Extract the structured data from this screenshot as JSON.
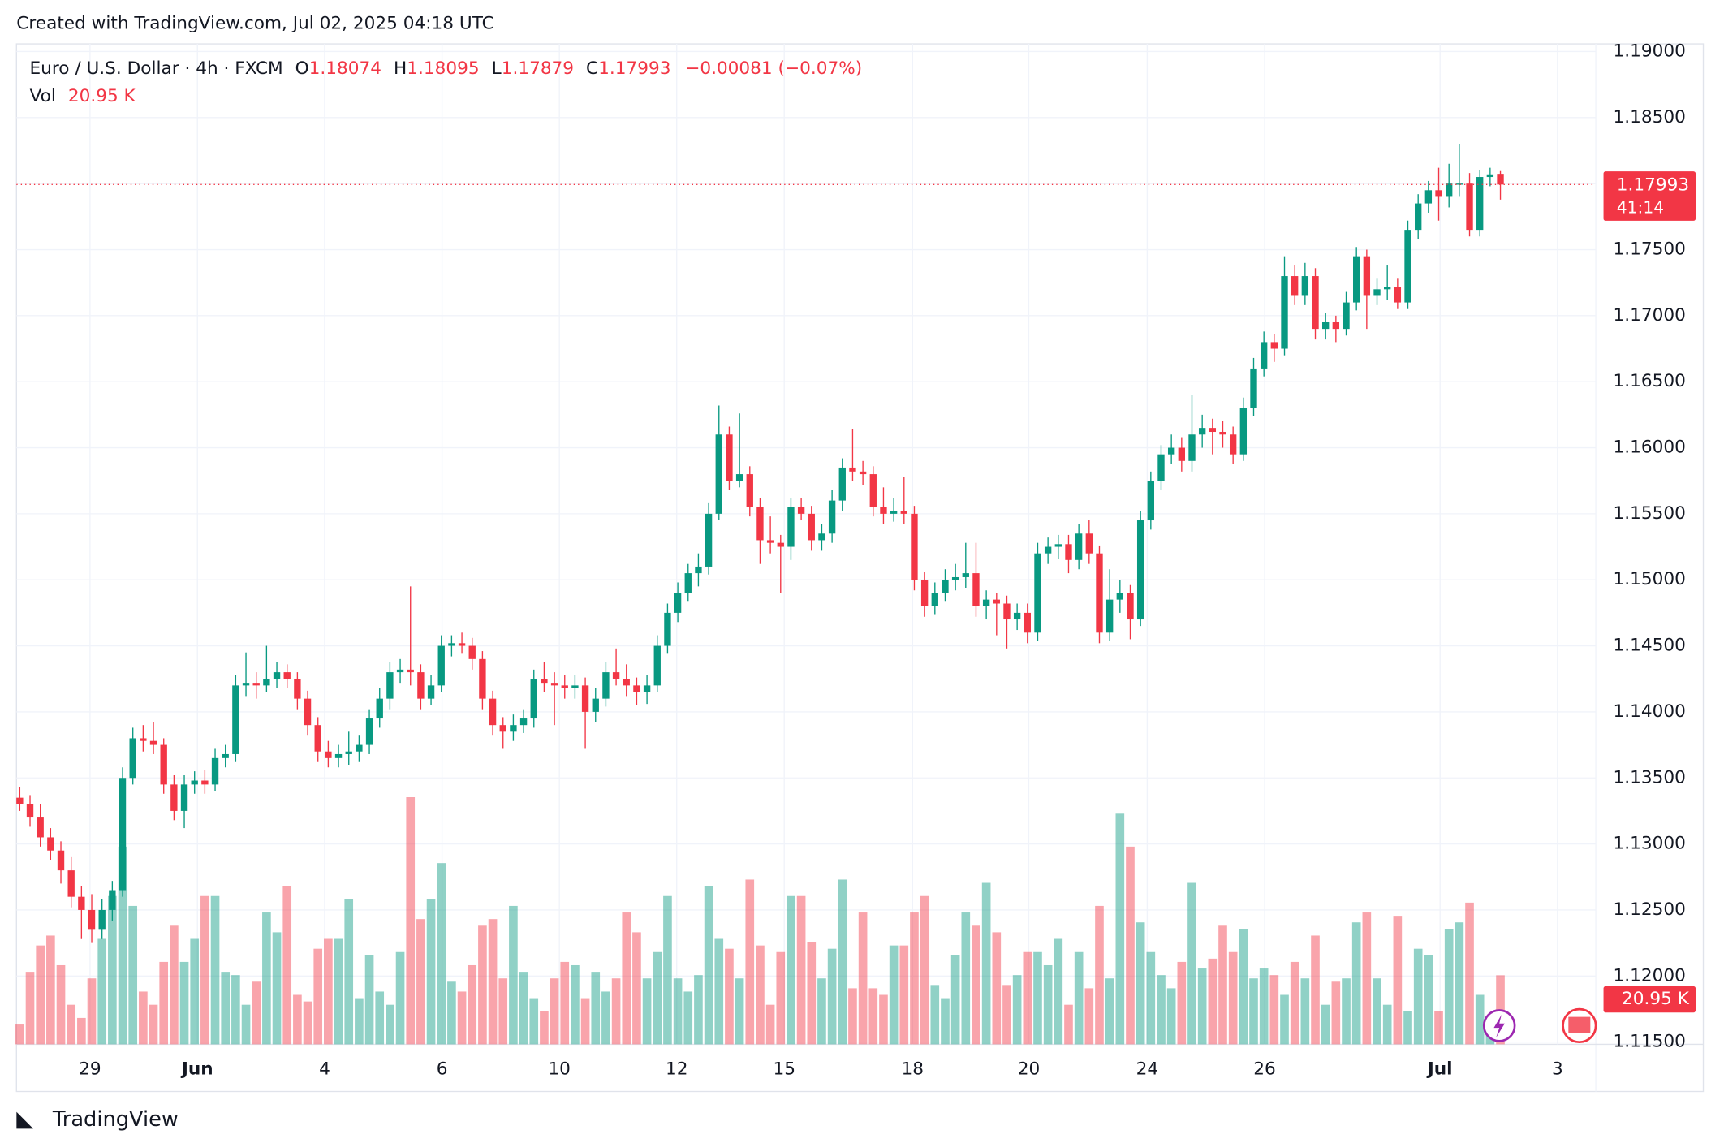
{
  "caption": "Created with TradingView.com, Jul 02, 2025 04:18 UTC",
  "footer": "TradingView",
  "chart_data": {
    "type": "candlestick",
    "header": {
      "symbol": "Euro / U.S. Dollar · 4h · FXCM",
      "o": "O",
      "h": "H",
      "l": "L",
      "c": "C",
      "change": "−0.00081 (−0.07%)",
      "vol": "Vol"
    },
    "countdown": "41:14",
    "last_volume_label": "20.95 K",
    "up_color": "#089981",
    "down_color": "#f23645",
    "up_volume_color": "rgba(8,153,129,0.45)",
    "down_volume_color": "rgba(242,54,69,0.45)",
    "grid": true,
    "xlim": [
      -0.32,
      153.28
    ],
    "xticks": [
      {
        "value": 6.83,
        "label": "29"
      },
      {
        "value": 17.28,
        "label": "Jun"
      },
      {
        "value": 29.65,
        "label": "4"
      },
      {
        "value": 41.07,
        "label": "6"
      },
      {
        "value": 52.48,
        "label": "10"
      },
      {
        "value": 63.89,
        "label": "12"
      },
      {
        "value": 74.35,
        "label": "15"
      },
      {
        "value": 86.83,
        "label": "18"
      },
      {
        "value": 98.13,
        "label": "20"
      },
      {
        "value": 109.65,
        "label": "24"
      },
      {
        "value": 121.07,
        "label": "26"
      },
      {
        "value": 138.13,
        "label": "Jul"
      },
      {
        "value": 149.55,
        "label": "3"
      }
    ],
    "ylim": [
      1.11483,
      1.19058
    ],
    "yticks": [
      {
        "value": 1.115,
        "label": "1.11500"
      },
      {
        "value": 1.12,
        "label": "1.12000"
      },
      {
        "value": 1.125,
        "label": "1.12500"
      },
      {
        "value": 1.13,
        "label": "1.13000"
      },
      {
        "value": 1.135,
        "label": "1.13500"
      },
      {
        "value": 1.14,
        "label": "1.14000"
      },
      {
        "value": 1.145,
        "label": "1.14500"
      },
      {
        "value": 1.15,
        "label": "1.15000"
      },
      {
        "value": 1.155,
        "label": "1.15500"
      },
      {
        "value": 1.16,
        "label": "1.16000"
      },
      {
        "value": 1.165,
        "label": "1.16500"
      },
      {
        "value": 1.17,
        "label": "1.17000"
      },
      {
        "value": 1.175,
        "label": "1.17500"
      },
      {
        "value": 1.18,
        "label": "1.18000"
      },
      {
        "value": 1.185,
        "label": "1.18500"
      },
      {
        "value": 1.19,
        "label": "1.19000"
      }
    ],
    "ohlc": [
      [
        1.1335,
        1.1343,
        1.1325,
        1.133
      ],
      [
        1.133,
        1.1337,
        1.1313,
        1.132
      ],
      [
        1.132,
        1.133,
        1.1298,
        1.1305
      ],
      [
        1.1305,
        1.1312,
        1.1288,
        1.1295
      ],
      [
        1.1295,
        1.1302,
        1.127,
        1.128
      ],
      [
        1.128,
        1.129,
        1.1252,
        1.126
      ],
      [
        1.126,
        1.1268,
        1.1228,
        1.125
      ],
      [
        1.125,
        1.1262,
        1.1225,
        1.1235
      ],
      [
        1.1235,
        1.1258,
        1.1228,
        1.125
      ],
      [
        1.125,
        1.1272,
        1.1242,
        1.1265
      ],
      [
        1.1265,
        1.1358,
        1.126,
        1.135
      ],
      [
        1.135,
        1.1388,
        1.1345,
        1.138
      ],
      [
        1.138,
        1.139,
        1.137,
        1.1378
      ],
      [
        1.1378,
        1.1392,
        1.1368,
        1.1375
      ],
      [
        1.1375,
        1.138,
        1.1338,
        1.1345
      ],
      [
        1.1345,
        1.1352,
        1.1318,
        1.1325
      ],
      [
        1.1325,
        1.1352,
        1.1312,
        1.1345
      ],
      [
        1.1345,
        1.1355,
        1.1338,
        1.1348
      ],
      [
        1.1348,
        1.1356,
        1.1338,
        1.1345
      ],
      [
        1.1345,
        1.1372,
        1.134,
        1.1365
      ],
      [
        1.1365,
        1.1375,
        1.1358,
        1.1368
      ],
      [
        1.1368,
        1.1428,
        1.1362,
        1.142
      ],
      [
        1.142,
        1.1445,
        1.1412,
        1.1422
      ],
      [
        1.1422,
        1.143,
        1.141,
        1.142
      ],
      [
        1.142,
        1.145,
        1.1415,
        1.1425
      ],
      [
        1.1425,
        1.1438,
        1.1418,
        1.143
      ],
      [
        1.143,
        1.1436,
        1.1418,
        1.1425
      ],
      [
        1.1425,
        1.143,
        1.1402,
        1.141
      ],
      [
        1.141,
        1.1416,
        1.1382,
        1.139
      ],
      [
        1.139,
        1.1396,
        1.1362,
        1.137
      ],
      [
        1.137,
        1.1378,
        1.1358,
        1.1365
      ],
      [
        1.1365,
        1.1375,
        1.1358,
        1.1368
      ],
      [
        1.1368,
        1.1385,
        1.136,
        1.137
      ],
      [
        1.137,
        1.1382,
        1.1362,
        1.1375
      ],
      [
        1.1375,
        1.1402,
        1.1368,
        1.1395
      ],
      [
        1.1395,
        1.1418,
        1.1388,
        1.141
      ],
      [
        1.141,
        1.1438,
        1.1402,
        1.143
      ],
      [
        1.143,
        1.144,
        1.1422,
        1.1432
      ],
      [
        1.1432,
        1.1495,
        1.142,
        1.143
      ],
      [
        1.143,
        1.1436,
        1.1402,
        1.141
      ],
      [
        1.141,
        1.1428,
        1.1405,
        1.142
      ],
      [
        1.142,
        1.1458,
        1.1415,
        1.145
      ],
      [
        1.145,
        1.1458,
        1.1442,
        1.1452
      ],
      [
        1.1452,
        1.146,
        1.1444,
        1.145
      ],
      [
        1.145,
        1.1456,
        1.1432,
        1.144
      ],
      [
        1.144,
        1.1446,
        1.1402,
        1.141
      ],
      [
        1.141,
        1.1416,
        1.1382,
        1.139
      ],
      [
        1.139,
        1.1396,
        1.1372,
        1.1385
      ],
      [
        1.1385,
        1.1398,
        1.1378,
        1.139
      ],
      [
        1.139,
        1.1402,
        1.1384,
        1.1395
      ],
      [
        1.1395,
        1.1432,
        1.1388,
        1.1425
      ],
      [
        1.1425,
        1.1438,
        1.1415,
        1.1422
      ],
      [
        1.1422,
        1.143,
        1.139,
        1.142
      ],
      [
        1.142,
        1.1428,
        1.141,
        1.1418
      ],
      [
        1.1418,
        1.1428,
        1.141,
        1.142
      ],
      [
        1.142,
        1.1426,
        1.1372,
        1.14
      ],
      [
        1.14,
        1.1418,
        1.1392,
        1.141
      ],
      [
        1.141,
        1.1438,
        1.1404,
        1.143
      ],
      [
        1.143,
        1.1448,
        1.142,
        1.1425
      ],
      [
        1.1425,
        1.1436,
        1.1412,
        1.142
      ],
      [
        1.142,
        1.1426,
        1.1405,
        1.1415
      ],
      [
        1.1415,
        1.1428,
        1.1406,
        1.142
      ],
      [
        1.142,
        1.1458,
        1.1415,
        1.145
      ],
      [
        1.145,
        1.1482,
        1.1444,
        1.1475
      ],
      [
        1.1475,
        1.1498,
        1.1468,
        1.149
      ],
      [
        1.149,
        1.1512,
        1.1484,
        1.1505
      ],
      [
        1.1505,
        1.152,
        1.1495,
        1.151
      ],
      [
        1.151,
        1.1558,
        1.1504,
        1.155
      ],
      [
        1.155,
        1.1632,
        1.1545,
        1.161
      ],
      [
        1.161,
        1.1616,
        1.1568,
        1.1575
      ],
      [
        1.1575,
        1.1626,
        1.157,
        1.158
      ],
      [
        1.158,
        1.1586,
        1.1548,
        1.1555
      ],
      [
        1.1555,
        1.1562,
        1.1512,
        1.153
      ],
      [
        1.153,
        1.1548,
        1.152,
        1.1528
      ],
      [
        1.1528,
        1.1534,
        1.149,
        1.1525
      ],
      [
        1.1525,
        1.1562,
        1.1515,
        1.1555
      ],
      [
        1.1555,
        1.1562,
        1.1545,
        1.155
      ],
      [
        1.155,
        1.1556,
        1.1522,
        1.153
      ],
      [
        1.153,
        1.1542,
        1.1522,
        1.1535
      ],
      [
        1.1535,
        1.1568,
        1.1528,
        1.156
      ],
      [
        1.156,
        1.1592,
        1.1552,
        1.1585
      ],
      [
        1.1585,
        1.1614,
        1.1575,
        1.1582
      ],
      [
        1.1582,
        1.159,
        1.1572,
        1.158
      ],
      [
        1.158,
        1.1586,
        1.1548,
        1.1555
      ],
      [
        1.1555,
        1.157,
        1.1542,
        1.155
      ],
      [
        1.155,
        1.1562,
        1.1544,
        1.1552
      ],
      [
        1.1552,
        1.1578,
        1.1542,
        1.155
      ],
      [
        1.155,
        1.1556,
        1.1492,
        1.15
      ],
      [
        1.15,
        1.1506,
        1.1472,
        1.148
      ],
      [
        1.148,
        1.1498,
        1.1474,
        1.149
      ],
      [
        1.149,
        1.1508,
        1.1484,
        1.15
      ],
      [
        1.15,
        1.1512,
        1.1492,
        1.1502
      ],
      [
        1.1502,
        1.1528,
        1.1494,
        1.1505
      ],
      [
        1.1505,
        1.1528,
        1.1472,
        1.148
      ],
      [
        1.148,
        1.1492,
        1.147,
        1.1485
      ],
      [
        1.1485,
        1.149,
        1.1458,
        1.1482
      ],
      [
        1.1482,
        1.1488,
        1.1448,
        1.147
      ],
      [
        1.147,
        1.1482,
        1.1462,
        1.1475
      ],
      [
        1.1475,
        1.1482,
        1.1452,
        1.146
      ],
      [
        1.146,
        1.1528,
        1.1454,
        1.152
      ],
      [
        1.152,
        1.1532,
        1.1512,
        1.1525
      ],
      [
        1.1525,
        1.1534,
        1.1516,
        1.1527
      ],
      [
        1.1527,
        1.1534,
        1.1505,
        1.1515
      ],
      [
        1.1515,
        1.1542,
        1.1508,
        1.1535
      ],
      [
        1.1535,
        1.1545,
        1.1512,
        1.152
      ],
      [
        1.152,
        1.1526,
        1.1452,
        1.146
      ],
      [
        1.146,
        1.1508,
        1.1454,
        1.1485
      ],
      [
        1.1485,
        1.15,
        1.1475,
        1.149
      ],
      [
        1.149,
        1.1496,
        1.1455,
        1.147
      ],
      [
        1.147,
        1.1552,
        1.1465,
        1.1545
      ],
      [
        1.1545,
        1.1582,
        1.1538,
        1.1575
      ],
      [
        1.1575,
        1.1602,
        1.1568,
        1.1595
      ],
      [
        1.1595,
        1.161,
        1.1588,
        1.16
      ],
      [
        1.16,
        1.1608,
        1.1582,
        1.159
      ],
      [
        1.159,
        1.164,
        1.1582,
        1.161
      ],
      [
        1.161,
        1.1625,
        1.16,
        1.1615
      ],
      [
        1.1615,
        1.1622,
        1.1595,
        1.1612
      ],
      [
        1.1612,
        1.162,
        1.16,
        1.161
      ],
      [
        1.161,
        1.1616,
        1.1588,
        1.1595
      ],
      [
        1.1595,
        1.1638,
        1.159,
        1.163
      ],
      [
        1.163,
        1.1668,
        1.1624,
        1.166
      ],
      [
        1.166,
        1.1688,
        1.1654,
        1.168
      ],
      [
        1.168,
        1.1686,
        1.1665,
        1.1675
      ],
      [
        1.1675,
        1.1745,
        1.167,
        1.173
      ],
      [
        1.173,
        1.1738,
        1.1708,
        1.1715
      ],
      [
        1.1715,
        1.174,
        1.1708,
        1.173
      ],
      [
        1.173,
        1.1736,
        1.1682,
        1.169
      ],
      [
        1.169,
        1.1702,
        1.1682,
        1.1695
      ],
      [
        1.1695,
        1.17,
        1.168,
        1.169
      ],
      [
        1.169,
        1.1718,
        1.1685,
        1.171
      ],
      [
        1.171,
        1.1752,
        1.1704,
        1.1745
      ],
      [
        1.1745,
        1.175,
        1.169,
        1.1715
      ],
      [
        1.1715,
        1.1728,
        1.1708,
        1.172
      ],
      [
        1.172,
        1.1738,
        1.1712,
        1.1722
      ],
      [
        1.1722,
        1.1728,
        1.1705,
        1.171
      ],
      [
        1.171,
        1.1772,
        1.1705,
        1.1765
      ],
      [
        1.1765,
        1.1792,
        1.1758,
        1.1785
      ],
      [
        1.1785,
        1.1802,
        1.1778,
        1.1795
      ],
      [
        1.1795,
        1.1812,
        1.1772,
        1.179
      ],
      [
        1.179,
        1.1815,
        1.1782,
        1.18
      ],
      [
        1.18,
        1.183,
        1.179,
        1.18
      ],
      [
        1.18,
        1.1808,
        1.176,
        1.1765
      ],
      [
        1.1765,
        1.181,
        1.176,
        1.1805
      ],
      [
        1.1805,
        1.1812,
        1.1798,
        1.1807
      ],
      [
        1.18074,
        1.18095,
        1.17879,
        1.17993
      ]
    ],
    "volume": [
      6,
      22,
      30,
      33,
      24,
      12,
      8,
      20,
      32,
      45,
      60,
      42,
      16,
      12,
      25,
      36,
      25,
      32,
      45,
      45,
      22,
      21,
      12,
      19,
      40,
      34,
      48,
      15,
      13,
      29,
      32,
      32,
      44,
      14,
      27,
      16,
      12,
      28,
      75,
      38,
      44,
      55,
      19,
      16,
      24,
      36,
      38,
      20,
      42,
      22,
      14,
      10,
      20,
      25,
      24,
      14,
      22,
      16,
      20,
      40,
      34,
      20,
      28,
      45,
      20,
      16,
      21,
      48,
      32,
      29,
      20,
      50,
      30,
      12,
      28,
      45,
      45,
      31,
      20,
      29,
      50,
      17,
      40,
      17,
      15,
      30,
      30,
      40,
      45,
      18,
      14,
      27,
      40,
      36,
      49,
      34,
      18,
      21,
      28,
      28,
      24,
      32,
      12,
      28,
      17,
      42,
      20,
      70,
      60,
      37,
      28,
      21,
      17,
      25,
      49,
      23,
      26,
      36,
      28,
      35,
      20,
      23,
      21,
      15,
      25,
      20,
      33,
      12,
      19,
      20,
      37,
      40,
      20,
      12,
      39,
      10,
      29,
      27,
      10,
      35,
      37,
      43,
      15,
      8,
      20.95
    ]
  }
}
